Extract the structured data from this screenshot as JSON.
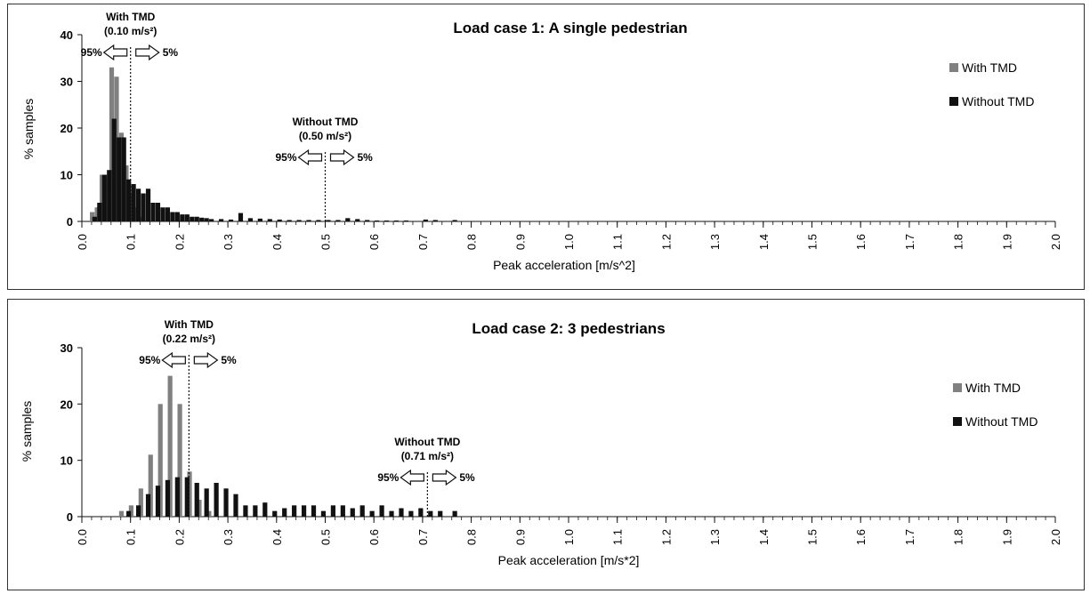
{
  "chart_data": [
    {
      "type": "bar",
      "title": "Load case 1: A single pedestrian",
      "xlabel": "Peak acceleration [m/s^2]",
      "ylabel": "% samples",
      "xlim": [
        0.0,
        2.0
      ],
      "ylim": [
        0,
        40
      ],
      "yticks": [
        0,
        10,
        20,
        30,
        40
      ],
      "xticks": [
        "0.0",
        "0.1",
        "0.2",
        "0.3",
        "0.4",
        "0.5",
        "0.6",
        "0.7",
        "0.8",
        "0.9",
        "1.0",
        "1.1",
        "1.2",
        "1.3",
        "1.4",
        "1.5",
        "1.6",
        "1.7",
        "1.8",
        "1.9",
        "2.0"
      ],
      "bin_width": 0.01,
      "legend_position": "top-right",
      "grid": false,
      "series": [
        {
          "name": "With TMD",
          "color": "#808080",
          "x": [
            0.02,
            0.03,
            0.04,
            0.05,
            0.06,
            0.07,
            0.08,
            0.09,
            0.1,
            0.11,
            0.12
          ],
          "values": [
            2,
            3,
            10,
            10,
            33,
            31,
            19,
            12,
            6,
            3,
            1
          ]
        },
        {
          "name": "Without TMD",
          "color": "#111111",
          "x": [
            0.02,
            0.03,
            0.04,
            0.05,
            0.06,
            0.07,
            0.08,
            0.09,
            0.1,
            0.11,
            0.12,
            0.13,
            0.14,
            0.15,
            0.16,
            0.17,
            0.18,
            0.19,
            0.2,
            0.21,
            0.22,
            0.23,
            0.24,
            0.25,
            0.26,
            0.28,
            0.3,
            0.32,
            0.34,
            0.36,
            0.38,
            0.4,
            0.42,
            0.44,
            0.46,
            0.48,
            0.5,
            0.52,
            0.54,
            0.56,
            0.58,
            0.6,
            0.62,
            0.64,
            0.66,
            0.7,
            0.72,
            0.76
          ],
          "values": [
            1,
            4,
            10,
            11,
            22,
            18,
            18,
            9,
            8,
            7,
            6,
            7,
            4,
            4,
            3,
            3,
            2,
            2,
            1.5,
            1.5,
            1,
            1,
            0.8,
            0.7,
            0.5,
            0.5,
            0.4,
            1.8,
            0.7,
            0.6,
            0.5,
            0.4,
            0.3,
            0.3,
            0.3,
            0.3,
            0.3,
            0.3,
            0.7,
            0.5,
            0.3,
            0.2,
            0.2,
            0.2,
            0.2,
            0.4,
            0.3,
            0.3
          ]
        }
      ],
      "annotations": [
        {
          "x": 0.1,
          "label": "With TMD",
          "value_label": "(0.10 m/s²)",
          "left_pct": "95%",
          "right_pct": "5%"
        },
        {
          "x": 0.5,
          "label": "Without TMD",
          "value_label": "(0.50 m/s²)",
          "left_pct": "95%",
          "right_pct": "5%"
        }
      ]
    },
    {
      "type": "bar",
      "title": "Load case 2: 3 pedestrians",
      "xlabel": "Peak acceleration [m/s*2]",
      "ylabel": "% samples",
      "xlim": [
        0.0,
        2.0
      ],
      "ylim": [
        0,
        30
      ],
      "yticks": [
        0,
        10,
        20,
        30
      ],
      "xticks": [
        "0.0",
        "0.1",
        "0.2",
        "0.3",
        "0.4",
        "0.5",
        "0.6",
        "0.7",
        "0.8",
        "0.9",
        "1.0",
        "1.1",
        "1.2",
        "1.3",
        "1.4",
        "1.5",
        "1.6",
        "1.7",
        "1.8",
        "1.9",
        "2.0"
      ],
      "bin_width": 0.01,
      "legend_position": "top-right",
      "grid": false,
      "series": [
        {
          "name": "With TMD",
          "color": "#808080",
          "x": [
            0.08,
            0.1,
            0.12,
            0.14,
            0.16,
            0.18,
            0.2,
            0.22,
            0.24,
            0.26
          ],
          "values": [
            1,
            2,
            5,
            11,
            20,
            25,
            20,
            8,
            3,
            1
          ]
        },
        {
          "name": "Without TMD",
          "color": "#111111",
          "x": [
            0.09,
            0.11,
            0.13,
            0.15,
            0.17,
            0.19,
            0.21,
            0.23,
            0.25,
            0.27,
            0.29,
            0.31,
            0.33,
            0.35,
            0.37,
            0.39,
            0.41,
            0.43,
            0.45,
            0.47,
            0.49,
            0.51,
            0.53,
            0.55,
            0.57,
            0.59,
            0.61,
            0.63,
            0.65,
            0.67,
            0.69,
            0.71,
            0.73,
            0.76
          ],
          "values": [
            1,
            2,
            4,
            5.5,
            6.5,
            7,
            7,
            6,
            5,
            6,
            5,
            4,
            2,
            2,
            2.5,
            1,
            1.5,
            2,
            2,
            2,
            1,
            2,
            2,
            1.5,
            2,
            1,
            2,
            1,
            1.5,
            1,
            1.5,
            1,
            1,
            1
          ]
        }
      ],
      "annotations": [
        {
          "x": 0.22,
          "label": "With TMD",
          "value_label": "(0.22 m/s²)",
          "left_pct": "95%",
          "right_pct": "5%"
        },
        {
          "x": 0.71,
          "label": "Without TMD",
          "value_label": "(0.71 m/s²)",
          "left_pct": "95%",
          "right_pct": "5%"
        }
      ]
    }
  ]
}
